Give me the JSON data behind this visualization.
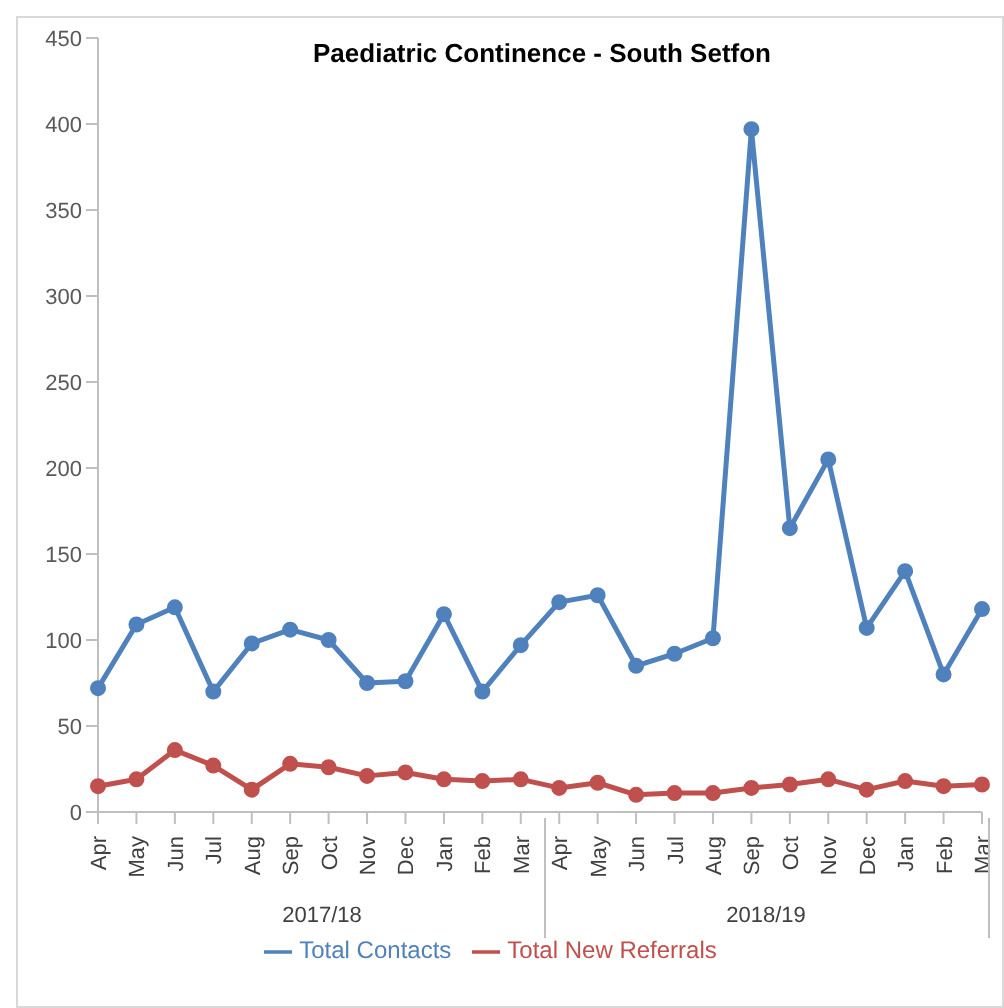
{
  "chart_data": {
    "type": "line",
    "title": "Paediatric Continence - South Setfon",
    "categories": [
      "Apr",
      "May",
      "Jun",
      "Jul",
      "Aug",
      "Sep",
      "Oct",
      "Nov",
      "Dec",
      "Jan",
      "Feb",
      "Mar",
      "Apr",
      "May",
      "Jun",
      "Jul",
      "Aug",
      "Sep",
      "Oct",
      "Nov",
      "Dec",
      "Jan",
      "Feb",
      "Mar"
    ],
    "series": [
      {
        "name": "Total Contacts",
        "color": "#4f81bd",
        "values": [
          72,
          109,
          119,
          70,
          98,
          106,
          100,
          75,
          76,
          115,
          70,
          97,
          122,
          126,
          85,
          92,
          101,
          397,
          165,
          205,
          107,
          140,
          80,
          118
        ]
      },
      {
        "name": "Total New Referrals",
        "color": "#c0504d",
        "values": [
          15,
          19,
          36,
          27,
          13,
          28,
          26,
          21,
          23,
          19,
          18,
          19,
          14,
          17,
          10,
          11,
          11,
          14,
          16,
          19,
          13,
          18,
          15,
          16
        ]
      }
    ],
    "annotations": [
      "2017/18",
      "2018/19"
    ],
    "ylim": [
      0,
      450
    ],
    "yticks": [
      0,
      50,
      100,
      150,
      200,
      250,
      300,
      350,
      400,
      450
    ],
    "grid": false,
    "legend": "bottom",
    "marker": "circle",
    "line_style": "solid"
  }
}
